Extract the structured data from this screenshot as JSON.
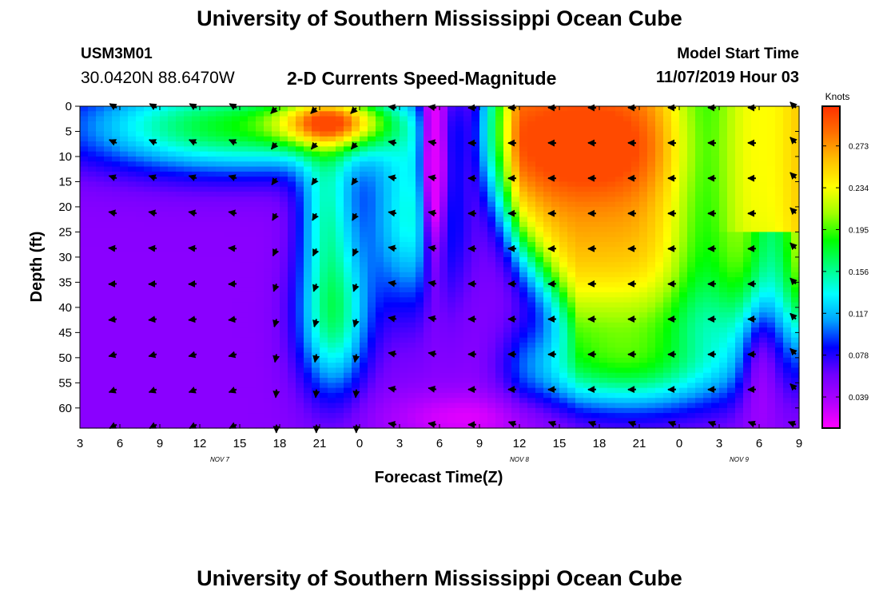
{
  "page": {
    "title_top": "University of Southern Mississippi Ocean Cube",
    "title_bottom": "University of Southern Mississippi Ocean Cube",
    "station_id": "USM3M01",
    "station_coords": "30.0420N 88.6470W",
    "plot_title": "2-D Currents Speed-Magnitude",
    "model_start_label": "Model Start Time",
    "model_start_value": "11/07/2019 Hour 03"
  },
  "chart_data": {
    "type": "heatmap",
    "title": "2-D Currents Speed-Magnitude",
    "xlabel": "Forecast Time(Z)",
    "ylabel": "Depth (ft)",
    "x_tick_labels": [
      "3",
      "6",
      "9",
      "12",
      "15",
      "18",
      "21",
      "0",
      "3",
      "6",
      "9",
      "12",
      "15",
      "18",
      "21",
      "0",
      "3",
      "6",
      "9"
    ],
    "x_range_hours": [
      0,
      54
    ],
    "date_labels": [
      {
        "text": "NOV 7",
        "hour": 10.5
      },
      {
        "text": "NOV 8",
        "hour": 33
      },
      {
        "text": "NOV 9",
        "hour": 49.5
      }
    ],
    "y_ticks": [
      0,
      5,
      10,
      15,
      20,
      25,
      30,
      35,
      40,
      45,
      50,
      55,
      60
    ],
    "ylim": [
      0,
      64
    ],
    "colorbar": {
      "label": "Knots",
      "ticks": [
        0.039,
        0.078,
        0.117,
        0.156,
        0.195,
        0.234,
        0.273
      ],
      "range": [
        0.01,
        0.31
      ],
      "colors": [
        "#ff00ff",
        "#b000ff",
        "#7000ff",
        "#0000ff",
        "#00a0ff",
        "#00ffff",
        "#00ff80",
        "#00ff00",
        "#a0ff00",
        "#ffff00",
        "#ffc000",
        "#ff7000",
        "#ff3000"
      ]
    },
    "arrow_hours": [
      3,
      6,
      9,
      12,
      15,
      18,
      21,
      24,
      27,
      30,
      33,
      36,
      39,
      42,
      45,
      48,
      51,
      54
    ],
    "arrow_depths": [
      0,
      7,
      14,
      21,
      28,
      35,
      42,
      49,
      56,
      63
    ]
  }
}
